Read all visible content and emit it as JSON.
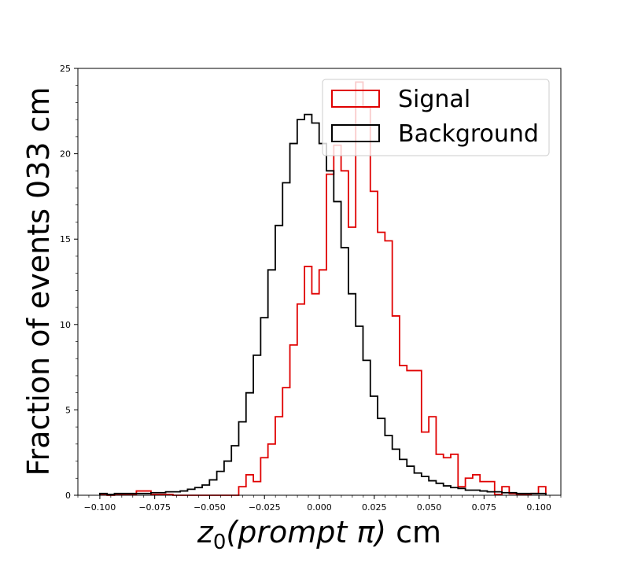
{
  "chart_data": {
    "type": "histogram-step",
    "title": "",
    "xlabel_math": "z",
    "xlabel_sub": "0",
    "xlabel_paren": "(prompt π)",
    "xlabel_unit": " cm",
    "ylabel": "Fraction of events 033 cm",
    "xlim": [
      -0.11,
      0.11
    ],
    "ylim": [
      0,
      25
    ],
    "xticks": [
      -0.1,
      -0.075,
      -0.05,
      -0.025,
      0.0,
      0.025,
      0.05,
      0.075,
      0.1
    ],
    "xtick_labels": [
      "−0.100",
      "−0.075",
      "−0.050",
      "−0.025",
      "0.000",
      "0.025",
      "0.050",
      "0.075",
      "0.100"
    ],
    "yticks": [
      0,
      5,
      10,
      15,
      20,
      25
    ],
    "ytick_labels": [
      "0",
      "5",
      "10",
      "15",
      "20",
      "25"
    ],
    "bin_start": -0.1,
    "bin_width": 0.00333,
    "legend_position": "top-right",
    "grid": false,
    "series": [
      {
        "name": "Signal",
        "color": "#e00000",
        "values": [
          0.05,
          0.0,
          0.05,
          0.05,
          0.05,
          0.25,
          0.25,
          0.05,
          0.05,
          0.05,
          0.0,
          0.0,
          0.0,
          0.0,
          0.0,
          0.0,
          0.0,
          0.0,
          0.0,
          0.5,
          1.2,
          0.8,
          2.2,
          3.0,
          4.6,
          6.3,
          8.8,
          11.2,
          13.4,
          11.8,
          13.2,
          18.8,
          20.5,
          19.0,
          15.7,
          24.2,
          22.7,
          17.8,
          15.4,
          14.9,
          10.5,
          7.6,
          7.3,
          7.3,
          3.7,
          4.6,
          2.4,
          2.2,
          2.4,
          0.5,
          1.0,
          1.2,
          0.8,
          0.8,
          0.05,
          0.5,
          0.1,
          0.05,
          0.05,
          0.1,
          0.5
        ]
      },
      {
        "name": "Background",
        "color": "#000000",
        "values": [
          0.1,
          0.05,
          0.1,
          0.1,
          0.1,
          0.1,
          0.1,
          0.15,
          0.15,
          0.2,
          0.2,
          0.25,
          0.35,
          0.45,
          0.6,
          0.9,
          1.4,
          2.0,
          2.9,
          4.3,
          6.0,
          8.2,
          10.4,
          13.2,
          15.8,
          18.3,
          20.6,
          22.0,
          22.3,
          21.8,
          20.6,
          19.0,
          17.2,
          14.5,
          11.8,
          9.9,
          7.9,
          5.8,
          4.5,
          3.5,
          2.7,
          2.1,
          1.7,
          1.3,
          1.1,
          0.85,
          0.7,
          0.55,
          0.45,
          0.4,
          0.3,
          0.3,
          0.25,
          0.2,
          0.2,
          0.15,
          0.15,
          0.1,
          0.1,
          0.1,
          0.1
        ]
      }
    ]
  }
}
